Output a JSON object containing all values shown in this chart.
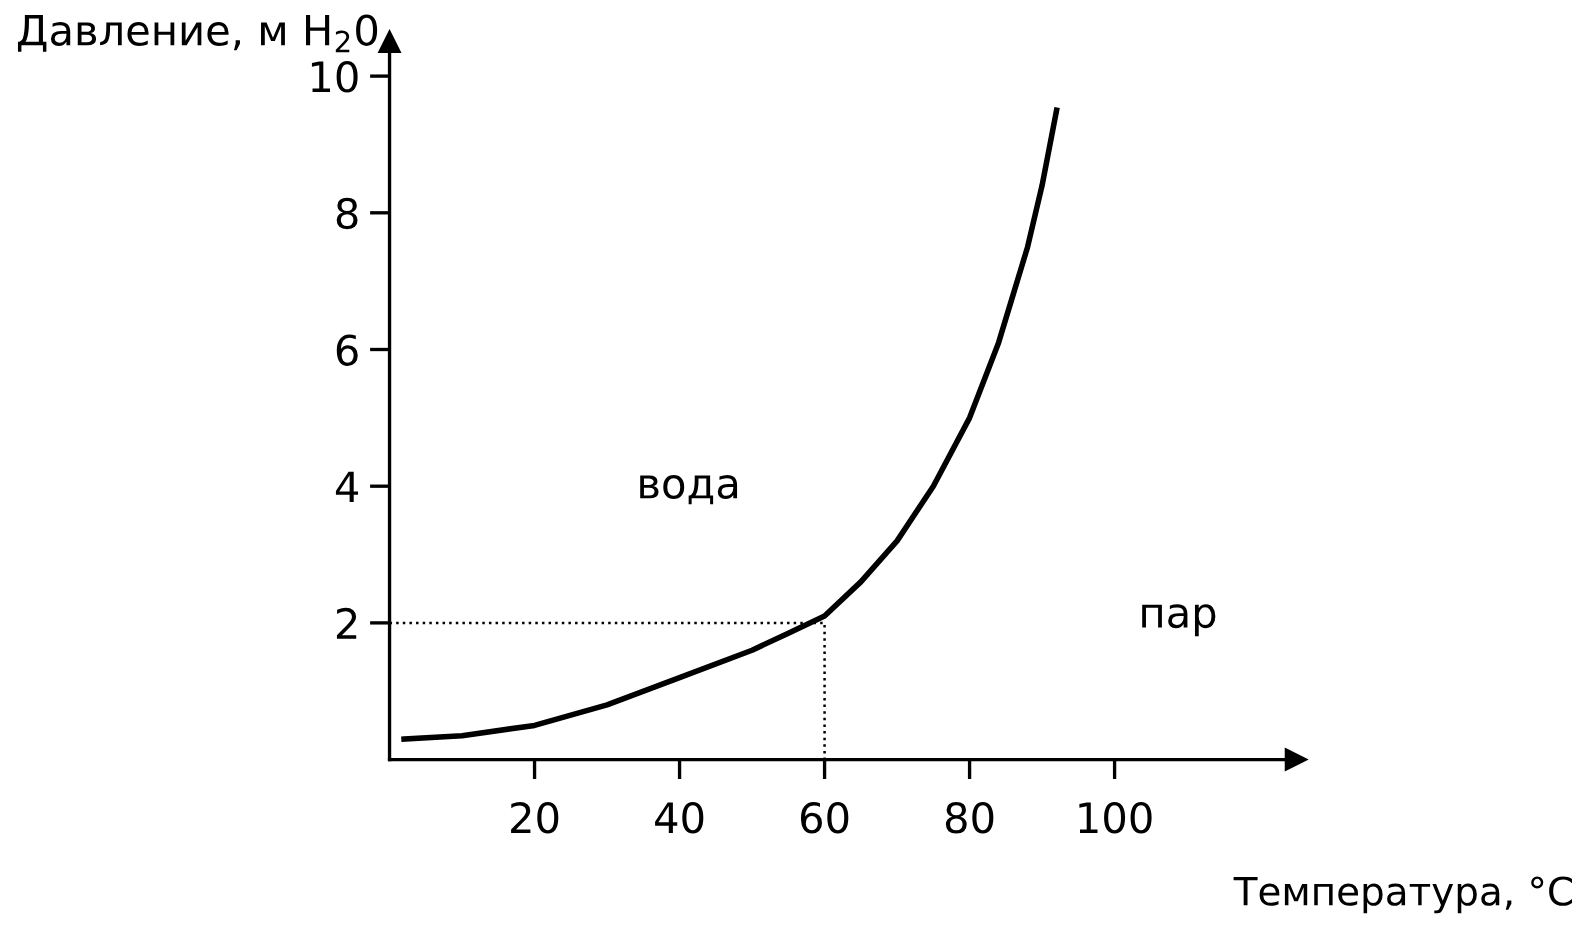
{
  "chart_data": {
    "type": "line",
    "xlabel": "Температура, °C",
    "ylabel": "Давление, м H$_{2}$0",
    "xlim": [
      0,
      125
    ],
    "ylim": [
      0,
      10.5
    ],
    "xticks": [
      20,
      40,
      60,
      80,
      100
    ],
    "yticks": [
      2,
      4,
      6,
      8,
      10
    ],
    "grid": false,
    "legend": false,
    "marker": "none",
    "series": [
      {
        "color": "#000000",
        "line_style": "solid",
        "x": [
          2,
          10,
          20,
          30,
          40,
          50,
          55,
          60,
          65,
          70,
          75,
          80,
          84,
          88,
          90,
          92
        ],
        "values": [
          0.3,
          0.35,
          0.5,
          0.8,
          1.2,
          1.6,
          1.85,
          2.1,
          2.6,
          3.2,
          4.0,
          5.0,
          6.1,
          7.5,
          8.4,
          9.5
        ]
      },
      {
        "color": "#000000",
        "line_style": "dotted",
        "x": [
          0,
          60,
          60
        ],
        "values": [
          2,
          2,
          0
        ]
      }
    ],
    "annotations": [
      "вода",
      "пар"
    ]
  }
}
